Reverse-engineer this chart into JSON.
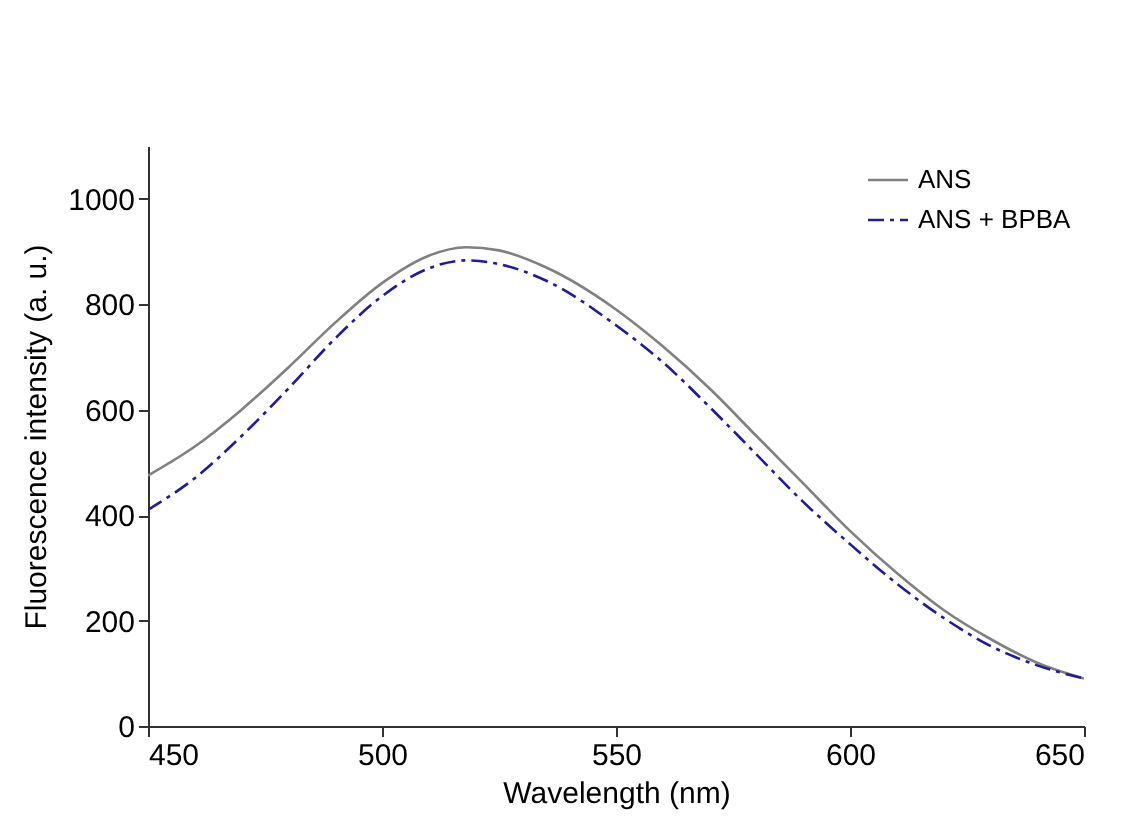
{
  "chart_data": {
    "type": "line",
    "xlabel": "Wavelength (nm)",
    "ylabel": "Fluorescence intensity (a. u.)",
    "x": [
      450,
      460,
      470,
      480,
      490,
      500,
      510,
      518,
      525,
      535,
      550,
      560,
      570,
      580,
      590,
      600,
      610,
      620,
      630,
      640,
      650
    ],
    "series": [
      {
        "name": "ANS",
        "color": "#808080",
        "line_style": "solid",
        "values": [
          475,
          530,
          600,
          680,
          765,
          840,
          892,
          908,
          902,
          870,
          790,
          720,
          640,
          550,
          460,
          370,
          290,
          220,
          165,
          120,
          90
        ]
      },
      {
        "name": "ANS + BPBA",
        "color": "#1c1c9c",
        "line_style": "dashed",
        "values": [
          410,
          470,
          550,
          640,
          735,
          815,
          868,
          883,
          876,
          845,
          760,
          690,
          605,
          515,
          425,
          345,
          270,
          205,
          152,
          115,
          90
        ]
      }
    ],
    "xlim": [
      450,
      650
    ],
    "xticks": [
      450,
      500,
      550,
      600,
      650
    ],
    "ylim": [
      0,
      1100
    ],
    "yticks": [
      0,
      200,
      400,
      600,
      800,
      1000
    ],
    "grid": false,
    "legend": "top right",
    "marker": "none"
  }
}
